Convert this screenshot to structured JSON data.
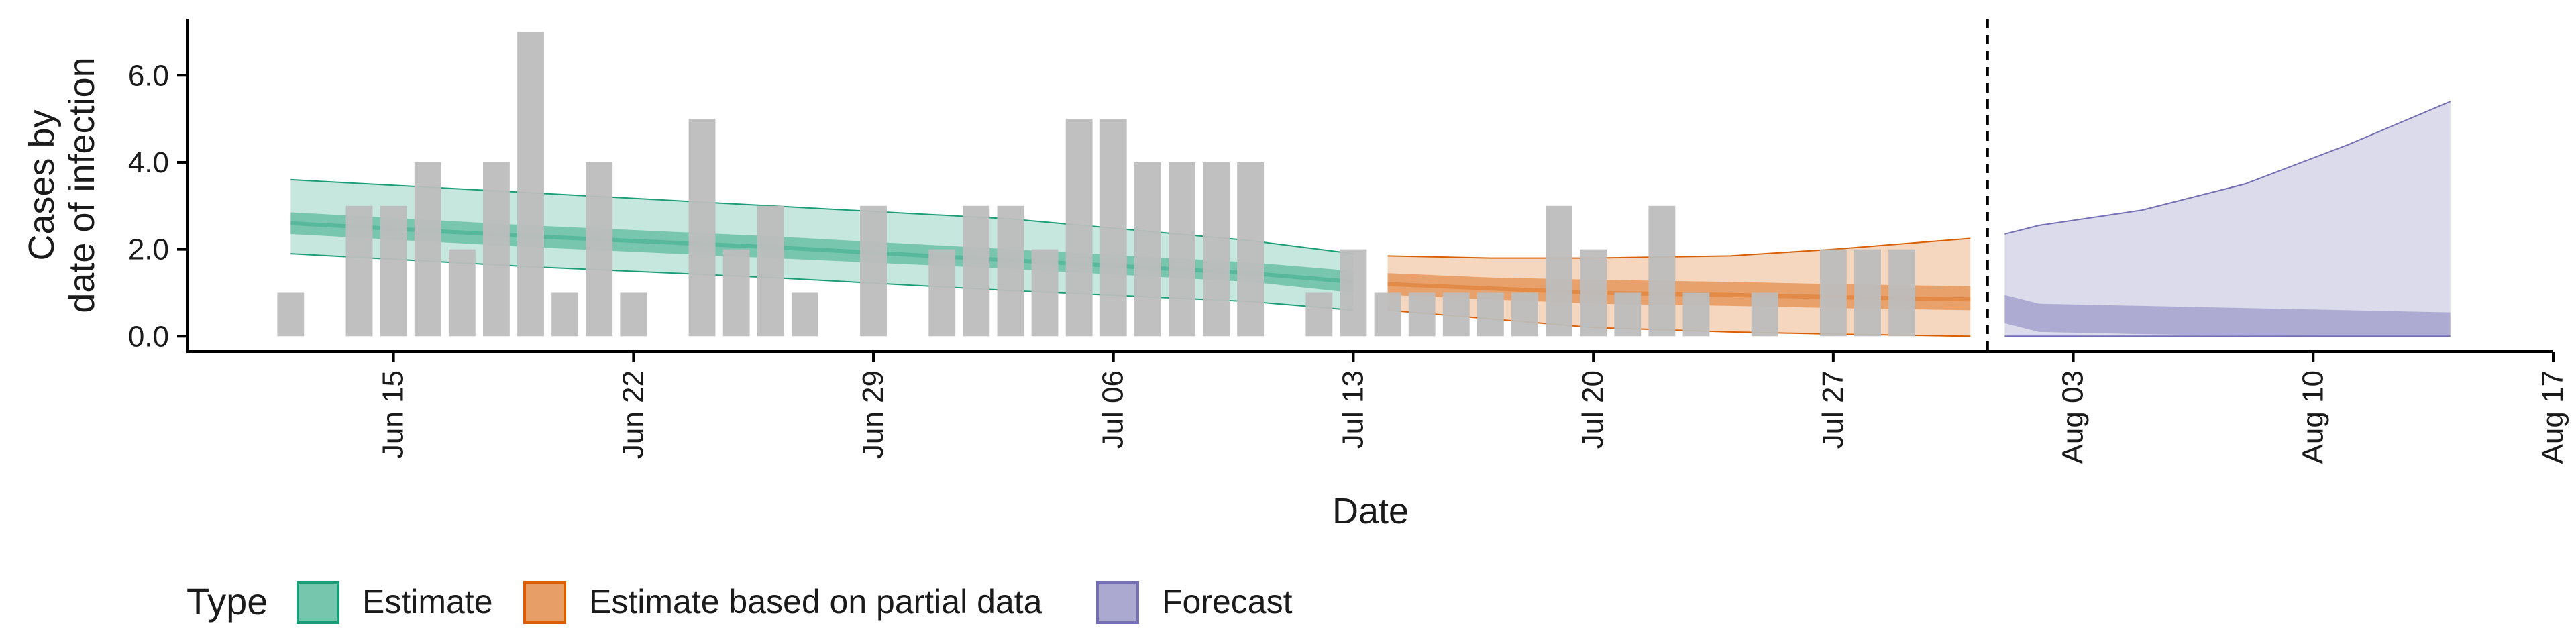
{
  "chart_data": {
    "type": "bar",
    "xlabel": "Date",
    "ylabel_lines": [
      "Cases by",
      "date of infection"
    ],
    "ylim": [
      -0.35,
      7.3
    ],
    "y_ticks": [
      0,
      2,
      4,
      6
    ],
    "y_tick_labels": [
      "0.0",
      "2.0",
      "4.0",
      "6.0"
    ],
    "x_ticks": [
      "2020-06-15",
      "2020-06-22",
      "2020-06-29",
      "2020-07-06",
      "2020-07-13",
      "2020-07-20",
      "2020-07-27",
      "2020-08-03",
      "2020-08-10",
      "2020-08-17"
    ],
    "x_tick_labels": [
      "Jun 15",
      "Jun 22",
      "Jun 29",
      "Jul 06",
      "Jul 13",
      "Jul 20",
      "Jul 27",
      "Aug 03",
      "Aug 10",
      "Aug 17"
    ],
    "xlim": [
      "2020-06-09",
      "2020-08-17"
    ],
    "cutoff_date": "2020-07-31",
    "bar_color": "#bdbdbd",
    "cases": {
      "start_date": "2020-06-12",
      "values": [
        1,
        0,
        3,
        3,
        4,
        2,
        4,
        7,
        1,
        4,
        1,
        0,
        5,
        2,
        3,
        1,
        0,
        3,
        0,
        2,
        3,
        3,
        2,
        5,
        5,
        4,
        4,
        4,
        4,
        0,
        1,
        2,
        1,
        1,
        1,
        1,
        1,
        3,
        2,
        1,
        3,
        1,
        0,
        1,
        0,
        2,
        2,
        2
      ]
    },
    "series": [
      {
        "name": "Estimate",
        "color": "#1b9e77",
        "dates": [
          "2020-06-12",
          "2020-06-19",
          "2020-06-26",
          "2020-07-03",
          "2020-07-10",
          "2020-07-13"
        ],
        "median": [
          2.6,
          2.3,
          2.05,
          1.75,
          1.45,
          1.25
        ],
        "lower50": [
          2.35,
          2.05,
          1.8,
          1.55,
          1.25,
          1.0
        ],
        "upper50": [
          2.85,
          2.55,
          2.3,
          2.0,
          1.7,
          1.5
        ],
        "lower90": [
          1.9,
          1.6,
          1.35,
          1.05,
          0.8,
          0.6
        ],
        "upper90": [
          3.6,
          3.3,
          3.0,
          2.7,
          2.2,
          1.9
        ]
      },
      {
        "name": "Estimate based on partial data",
        "color": "#d95f02",
        "dates": [
          "2020-07-14",
          "2020-07-17",
          "2020-07-20",
          "2020-07-24",
          "2020-07-27",
          "2020-07-31"
        ],
        "median": [
          1.2,
          1.1,
          1.0,
          0.95,
          0.9,
          0.85
        ],
        "lower50": [
          0.95,
          0.85,
          0.75,
          0.7,
          0.65,
          0.6
        ],
        "upper50": [
          1.45,
          1.35,
          1.3,
          1.25,
          1.2,
          1.15
        ],
        "lower90": [
          0.6,
          0.4,
          0.2,
          0.1,
          0.05,
          0.0
        ],
        "upper90": [
          1.85,
          1.8,
          1.8,
          1.85,
          2.0,
          2.25
        ]
      },
      {
        "name": "Forecast",
        "color": "#7570b3",
        "dates": [
          "2020-08-01",
          "2020-08-02",
          "2020-08-05",
          "2020-08-08",
          "2020-08-11",
          "2020-08-14"
        ],
        "lower50": [
          0.3,
          0.1,
          0.05,
          0.02,
          0.01,
          0.0
        ],
        "upper50": [
          0.95,
          0.75,
          0.7,
          0.65,
          0.6,
          0.55
        ],
        "lower90": [
          0.0,
          0.0,
          0.0,
          0.0,
          0.0,
          0.0
        ],
        "upper90": [
          2.35,
          2.55,
          2.9,
          3.5,
          4.4,
          5.4
        ]
      }
    ],
    "legend": {
      "title": "Type",
      "position": "bottom",
      "entries": [
        {
          "label": "Estimate",
          "color": "#1b9e77"
        },
        {
          "label": "Estimate based on partial data",
          "color": "#d95f02"
        },
        {
          "label": "Forecast",
          "color": "#7570b3"
        }
      ]
    },
    "grid": false
  }
}
